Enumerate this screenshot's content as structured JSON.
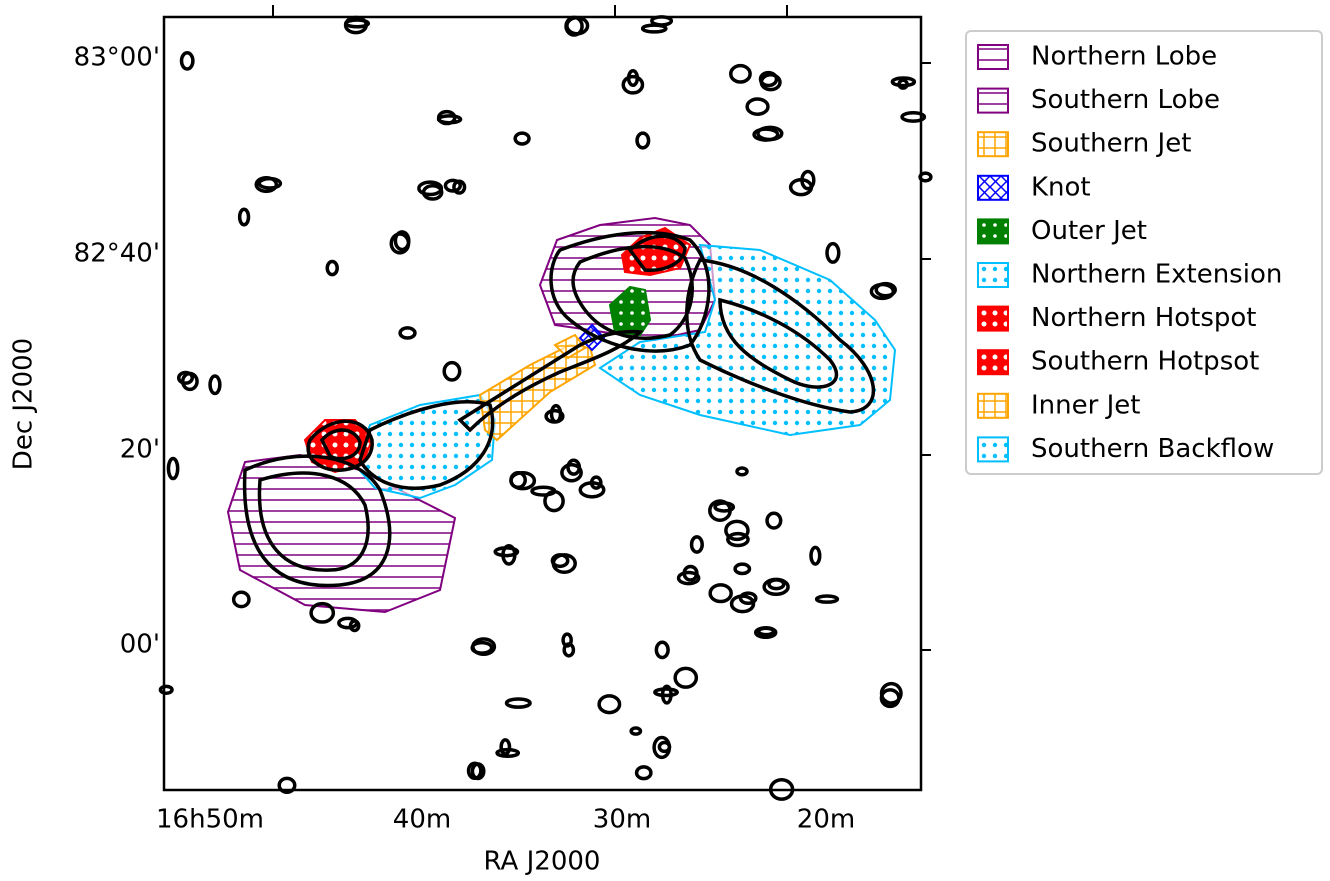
{
  "figure": {
    "xlabel": "RA J2000",
    "ylabel": "Dec J2000",
    "xticks": [
      "16h50m",
      "40m",
      "30m",
      "20m"
    ],
    "yticks": [
      "83°00'",
      "82°40'",
      "20'",
      "00'"
    ],
    "legend": [
      {
        "name": "Northern Lobe",
        "color": "#800080"
      },
      {
        "name": "Southern Lobe",
        "color": "#800080"
      },
      {
        "name": "Southern Jet",
        "color": "#ffa500"
      },
      {
        "name": "Knot",
        "color": "#0000ff"
      },
      {
        "name": "Outer Jet",
        "color": "#008000"
      },
      {
        "name": "Northern Extension",
        "color": "#00bfff"
      },
      {
        "name": "Northern Hotspot",
        "color": "#ff0000"
      },
      {
        "name": "Southern Hotpsot",
        "color": "#ff0000"
      },
      {
        "name": "Inner Jet",
        "color": "#ffa500"
      },
      {
        "name": "Southern Backflow",
        "color": "#00bfff"
      }
    ]
  }
}
